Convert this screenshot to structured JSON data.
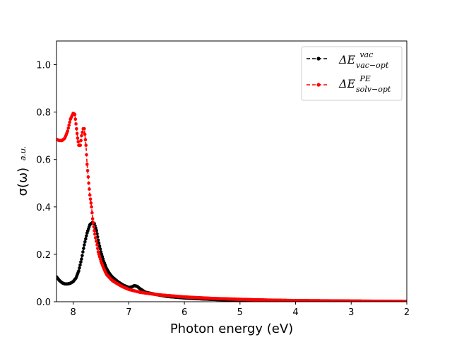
{
  "chart_data": {
    "type": "line",
    "title": "",
    "xlabel": "Photon energy (eV)",
    "ylabel": "σ(ω)",
    "ylabel_subscript": "a.u.",
    "xlim": [
      8.3,
      2.0
    ],
    "ylim": [
      0.0,
      1.1
    ],
    "x_ticks": [
      8,
      7,
      6,
      5,
      4,
      3,
      2
    ],
    "y_ticks": [
      0.0,
      0.2,
      0.4,
      0.6,
      0.8,
      1.0
    ],
    "x_tick_labels": [
      "8",
      "7",
      "6",
      "5",
      "4",
      "3",
      "2"
    ],
    "y_tick_labels": [
      "0.0",
      "0.2",
      "0.4",
      "0.6",
      "0.8",
      "1.0"
    ],
    "grid": false,
    "legend_position": "top-right",
    "series": [
      {
        "name": "vac",
        "label_main": "ΔE",
        "label_sup": "vac",
        "label_sub": "vac−opt",
        "color": "#000000",
        "x": [
          8.3,
          8.25,
          8.2,
          8.15,
          8.1,
          8.05,
          8.0,
          7.95,
          7.9,
          7.85,
          7.8,
          7.75,
          7.7,
          7.65,
          7.62,
          7.58,
          7.55,
          7.5,
          7.45,
          7.4,
          7.35,
          7.3,
          7.25,
          7.2,
          7.1,
          7.0,
          6.95,
          6.9,
          6.85,
          6.8,
          6.7,
          6.5,
          6.3,
          6.0,
          5.7,
          5.4,
          5.0,
          4.5,
          4.0,
          3.5,
          3.0,
          2.5,
          2.0
        ],
        "y": [
          0.105,
          0.09,
          0.08,
          0.075,
          0.075,
          0.078,
          0.085,
          0.1,
          0.13,
          0.18,
          0.24,
          0.29,
          0.325,
          0.335,
          0.33,
          0.3,
          0.26,
          0.21,
          0.17,
          0.14,
          0.12,
          0.105,
          0.095,
          0.085,
          0.07,
          0.06,
          0.062,
          0.068,
          0.065,
          0.055,
          0.04,
          0.03,
          0.022,
          0.016,
          0.012,
          0.009,
          0.007,
          0.005,
          0.004,
          0.003,
          0.002,
          0.001,
          0.001
        ]
      },
      {
        "name": "solv",
        "label_main": "ΔE",
        "label_sup": "PE",
        "label_sub": "solv−opt",
        "color": "#ff0000",
        "x": [
          8.3,
          8.25,
          8.2,
          8.15,
          8.1,
          8.05,
          8.0,
          7.97,
          7.95,
          7.92,
          7.9,
          7.87,
          7.85,
          7.82,
          7.8,
          7.77,
          7.75,
          7.72,
          7.7,
          7.67,
          7.65,
          7.62,
          7.6,
          7.57,
          7.55,
          7.5,
          7.45,
          7.4,
          7.3,
          7.2,
          7.1,
          7.0,
          6.8,
          6.5,
          6.0,
          5.5,
          5.0,
          4.5,
          4.0,
          3.5,
          3.0,
          2.5,
          2.0
        ],
        "y": [
          0.685,
          0.68,
          0.68,
          0.69,
          0.72,
          0.77,
          0.795,
          0.79,
          0.75,
          0.69,
          0.66,
          0.66,
          0.7,
          0.73,
          0.73,
          0.66,
          0.58,
          0.5,
          0.45,
          0.4,
          0.35,
          0.3,
          0.27,
          0.24,
          0.21,
          0.17,
          0.14,
          0.115,
          0.09,
          0.075,
          0.062,
          0.052,
          0.04,
          0.03,
          0.02,
          0.014,
          0.01,
          0.007,
          0.005,
          0.004,
          0.003,
          0.002,
          0.001
        ]
      }
    ]
  }
}
